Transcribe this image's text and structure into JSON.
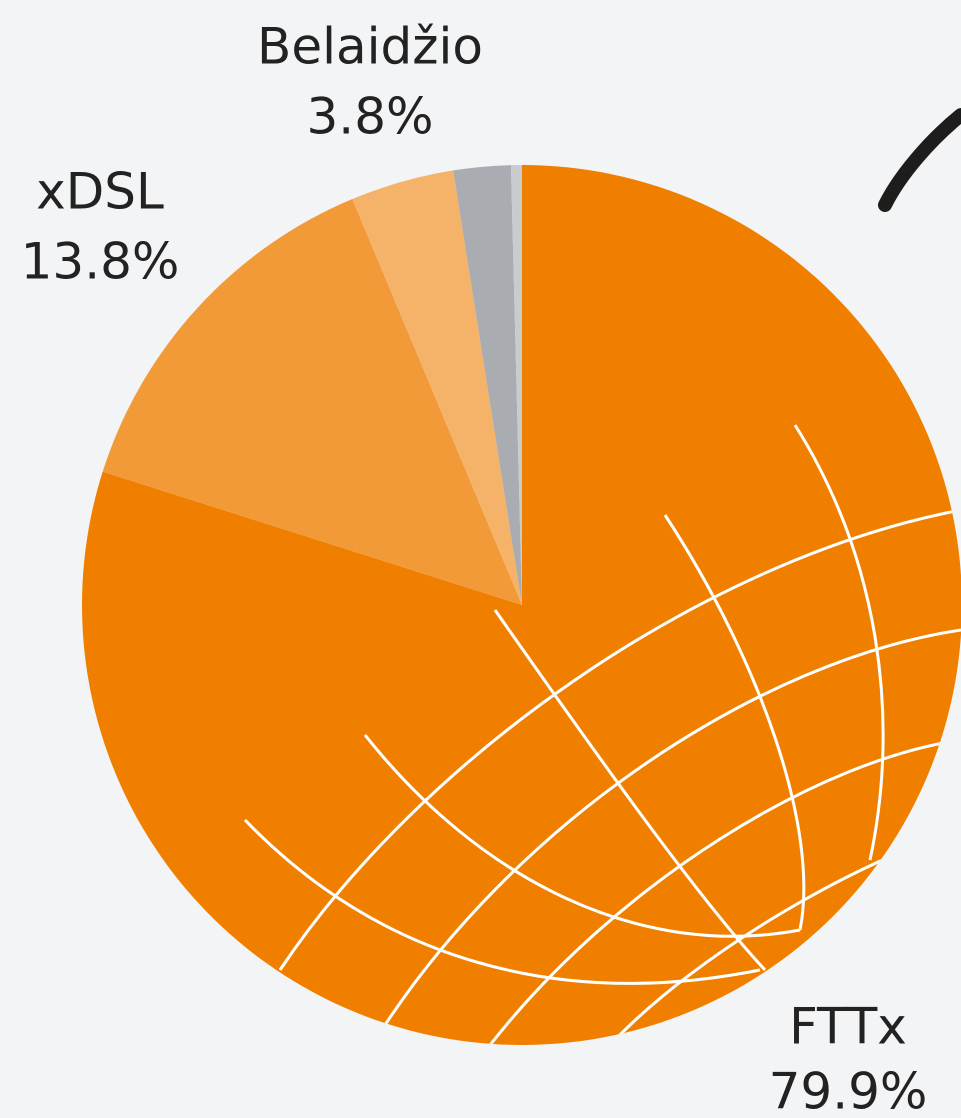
{
  "chart_data": {
    "type": "pie",
    "categories": [
      "FTTx",
      "xDSL",
      "Belaidžio",
      null,
      null
    ],
    "values": [
      79.9,
      13.8,
      3.8,
      2.1,
      0.4
    ],
    "value_labels": [
      "79.9%",
      "13.8%",
      "3.8%",
      null,
      null
    ],
    "colors": [
      "#f07f00",
      "#f39a38",
      "#f5b36a",
      "#a9adb2",
      "#c9cccf"
    ]
  }
}
